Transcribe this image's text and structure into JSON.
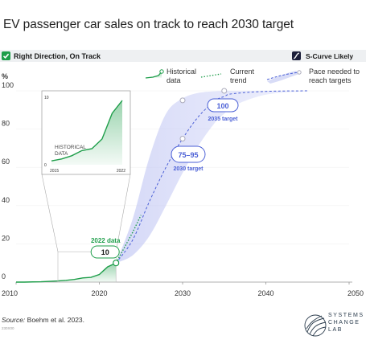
{
  "title": "EV passenger car sales on track to reach 2030 target",
  "status": {
    "left_label": "Right Direction, On Track",
    "right_label": "S-Curve Likely",
    "left_color": "#1e9e4a",
    "right_color": "#1c1f3a"
  },
  "source": {
    "prefix": "Source:",
    "text": " Boehm et al. 2023."
  },
  "code_text": "230X00",
  "logo": {
    "lines": [
      "SYSTEMS",
      "CHANGE",
      "LAB"
    ]
  },
  "chart_data": {
    "type": "line",
    "title": "EV passenger car sales on track to reach 2030 target",
    "xlabel": "",
    "ylabel": "%",
    "xlim": [
      2010,
      2050
    ],
    "ylim": [
      0,
      100
    ],
    "xticks": [
      2010,
      2020,
      2030,
      2040,
      2050
    ],
    "yticks": [
      0,
      20,
      40,
      60,
      80,
      100
    ],
    "legend_placement": "top-right",
    "series": [
      {
        "name": "Historical data",
        "style": "solid-area",
        "color": "#1e9e4a",
        "x": [
          2010,
          2011,
          2012,
          2013,
          2014,
          2015,
          2016,
          2017,
          2018,
          2019,
          2020,
          2021,
          2022
        ],
        "y": [
          0,
          0,
          0.1,
          0.2,
          0.4,
          0.6,
          0.9,
          1.4,
          2.2,
          2.5,
          4,
          8,
          10
        ]
      },
      {
        "name": "Current trend",
        "style": "dotted",
        "color": "#1e9e4a",
        "x": [
          2022,
          2023,
          2024,
          2025
        ],
        "y": [
          10,
          18,
          26,
          35
        ]
      },
      {
        "name": "Pace needed to reach targets",
        "style": "dashed-with-band",
        "color": "#4a5fd6",
        "x": [
          2022,
          2024,
          2026,
          2028,
          2030,
          2032,
          2034,
          2035,
          2036,
          2040,
          2045
        ],
        "y": [
          10,
          22,
          42,
          60,
          75,
          87,
          95,
          97,
          98.5,
          99.7,
          100
        ],
        "band_lower": [
          10,
          14,
          24,
          40,
          57,
          72,
          84,
          88,
          92,
          98,
          99.8
        ],
        "band_upper": [
          10,
          33,
          65,
          88,
          96,
          99,
          99.8,
          100,
          100,
          100,
          100
        ]
      }
    ],
    "annotations": [
      {
        "label": "2022 data",
        "value": "10",
        "x": 2022,
        "y": 10,
        "color": "#1e9e4a"
      },
      {
        "label": "2030 target",
        "value": "75–95",
        "x": 2030,
        "y": 75,
        "color": "#4a5fd6"
      },
      {
        "label": "2035 target",
        "value": "100",
        "x": 2035,
        "y": 100,
        "color": "#4a5fd6"
      }
    ],
    "inset": {
      "label_line1": "HISTORICAL",
      "label_line2": "DATA",
      "xlim": [
        2015,
        2022
      ],
      "ylim": [
        0,
        10
      ],
      "x_tick_labels": [
        "2015",
        "2022"
      ],
      "y_tick_labels": [
        "0",
        "10"
      ],
      "x": [
        2015,
        2016,
        2017,
        2018,
        2019,
        2020,
        2021,
        2022
      ],
      "y": [
        0.6,
        0.9,
        1.4,
        2.2,
        2.5,
        4,
        8,
        10
      ]
    }
  }
}
